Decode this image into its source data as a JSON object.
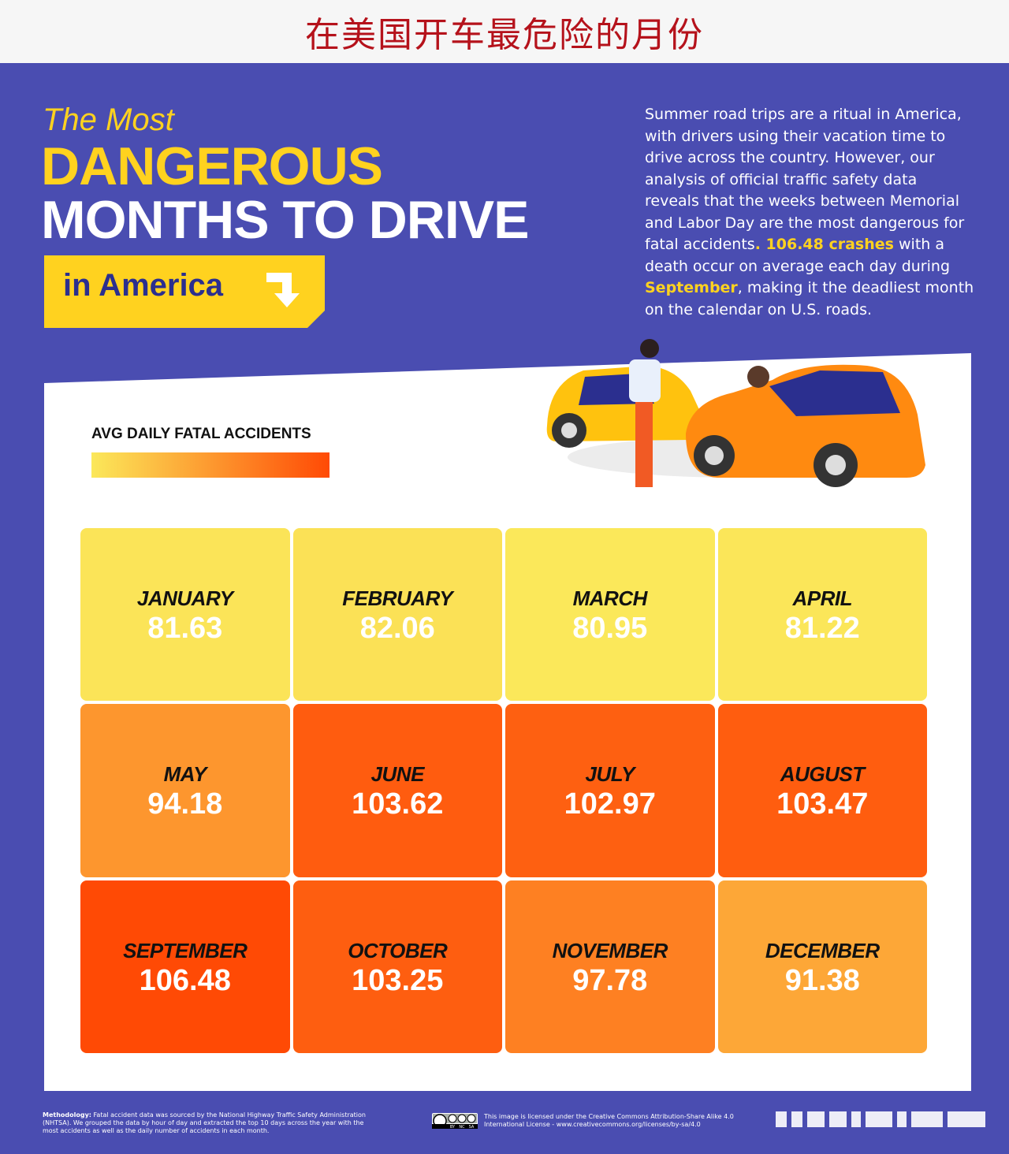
{
  "banner": {
    "title": "在美国开车最危险的月份"
  },
  "header": {
    "line1": "The Most",
    "line2": "DANGEROUS",
    "line3": "MONTHS TO DRIVE",
    "ribbon": "in America"
  },
  "intro": {
    "part1": "Summer road trips are a ritual in America, with drivers using their vacation time to drive across the country. However, our analysis of official traffic safety data reveals that the weeks between Memorial and Labor Day are the most dangerous for fatal accidents",
    "hl1": ". 106.48 crashes",
    "part2": " with a death occur on average each day during ",
    "hl2": "September",
    "part3": ", making it the deadliest month on the calendar on U.S. roads."
  },
  "legend": {
    "title": "AVG DAILY FATAL ACCIDENTS",
    "colors": [
      "#fbe85a",
      "#ff4a05"
    ]
  },
  "chart_data": {
    "type": "heatmap",
    "title": "AVG DAILY FATAL ACCIDENTS",
    "categories": [
      "JANUARY",
      "FEBRUARY",
      "MARCH",
      "APRIL",
      "MAY",
      "JUNE",
      "JULY",
      "AUGUST",
      "SEPTEMBER",
      "OCTOBER",
      "NOVEMBER",
      "DECEMBER"
    ],
    "values": [
      "81.63",
      "82.06",
      "80.95",
      "81.22",
      "94.18",
      "103.62",
      "102.97",
      "103.47",
      "106.48",
      "103.25",
      "97.78",
      "91.38"
    ],
    "columns": 4,
    "color_scale": [
      "#fbe85a",
      "#ff4a05"
    ]
  },
  "footer": {
    "method_label": "Methodology:",
    "method_text": " Fatal accident data was sourced by the National Highway Traffic Safety Administration (NHTSA). We grouped the data by hour of day and extracted the top 10 days across the year with the most accidents as well as the daily number of accidents in each month.",
    "license": "This image is licensed under the Creative Commons Attribution-Share Alike 4.0 International License - www.creativecommons.org/licenses/by-sa/4.0",
    "cc_labels": [
      "BY",
      "NC",
      "SA"
    ]
  }
}
